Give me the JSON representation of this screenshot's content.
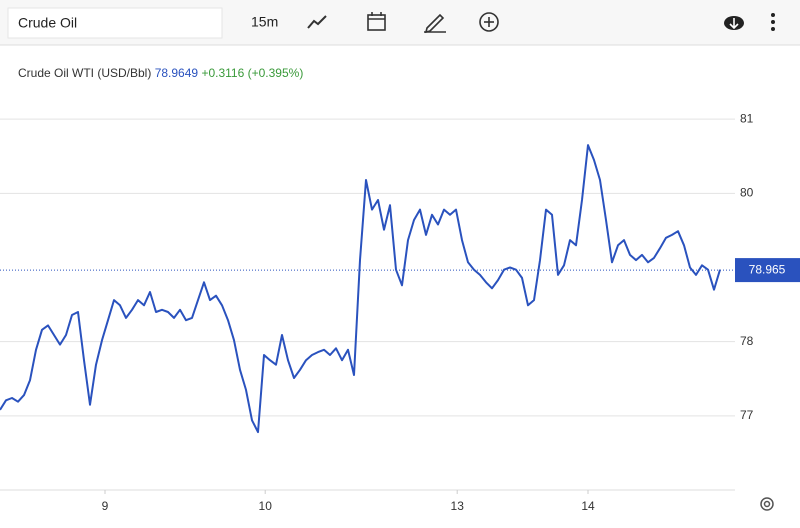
{
  "toolbar": {
    "search": "Crude Oil",
    "interval": "15m"
  },
  "chart_data": {
    "type": "line",
    "title": "Crude Oil WTI (USD/Bbl)",
    "last_price": 78.9649,
    "change": "+0.3116",
    "change_pct": "(+0.395%)",
    "last_value": 78.965,
    "xlim": [
      0,
      122.5
    ],
    "ylim": [
      76,
      82
    ],
    "xticks": [
      {
        "value": 17.5,
        "label": "9"
      },
      {
        "value": 44.2,
        "label": "10"
      },
      {
        "value": 76.2,
        "label": "13"
      },
      {
        "value": 98,
        "label": "14"
      }
    ],
    "yticks": [
      77,
      78,
      80,
      81
    ],
    "grid": true,
    "series": [
      {
        "color": "#2a52be",
        "x": [
          0,
          1,
          2,
          3,
          4,
          5,
          6,
          7,
          8,
          9,
          10,
          11,
          12,
          13,
          14,
          15,
          16,
          17,
          18,
          19,
          20,
          21,
          22,
          23,
          24,
          25,
          26,
          27,
          28,
          29,
          30,
          31,
          32,
          33,
          34,
          35,
          36,
          37,
          38,
          39,
          40,
          41,
          42,
          43,
          44,
          45,
          46,
          47,
          48,
          49,
          50,
          51,
          52,
          53,
          54,
          55,
          56,
          57,
          58,
          59,
          60,
          61,
          62,
          63,
          64,
          65,
          66,
          67,
          68,
          69,
          70,
          71,
          72,
          73,
          74,
          75,
          76,
          77,
          78,
          79,
          80,
          81,
          82,
          83,
          84,
          85,
          86,
          87,
          88,
          89,
          90,
          91,
          92,
          93,
          94,
          95,
          96,
          97,
          98,
          99,
          100,
          101,
          102,
          103,
          104,
          105,
          106,
          107,
          108,
          109,
          110,
          111,
          112,
          113,
          114,
          115,
          116,
          117,
          118,
          119,
          120
        ],
        "values": [
          77.08,
          77.21,
          77.24,
          77.19,
          77.28,
          77.48,
          77.89,
          78.16,
          78.22,
          78.09,
          77.96,
          78.09,
          78.36,
          78.4,
          77.75,
          77.15,
          77.69,
          78.02,
          78.29,
          78.56,
          78.49,
          78.32,
          78.43,
          78.56,
          78.49,
          78.67,
          78.4,
          78.43,
          78.4,
          78.32,
          78.43,
          78.29,
          78.32,
          78.56,
          78.8,
          78.56,
          78.62,
          78.49,
          78.29,
          78.02,
          77.62,
          77.35,
          76.94,
          76.78,
          77.82,
          77.75,
          77.69,
          78.09,
          77.75,
          77.51,
          77.62,
          77.75,
          77.82,
          77.86,
          77.89,
          77.82,
          77.91,
          77.75,
          77.89,
          77.55,
          79.1,
          80.18,
          79.78,
          79.91,
          79.51,
          79.84,
          78.97,
          78.76,
          79.37,
          79.64,
          79.78,
          79.44,
          79.71,
          79.58,
          79.78,
          79.71,
          79.78,
          79.37,
          79.07,
          78.97,
          78.9,
          78.8,
          78.72,
          78.83,
          78.97,
          79.0,
          78.97,
          78.86,
          78.49,
          78.56,
          79.1,
          79.78,
          79.71,
          78.9,
          79.03,
          79.37,
          79.3,
          79.91,
          80.65,
          80.45,
          80.18,
          79.64,
          79.07,
          79.3,
          79.37,
          79.17,
          79.1,
          79.17,
          79.07,
          79.13,
          79.26,
          79.4,
          79.44,
          79.49,
          79.3,
          79.0,
          78.9,
          79.03,
          78.97,
          78.7,
          78.97
        ]
      }
    ]
  }
}
